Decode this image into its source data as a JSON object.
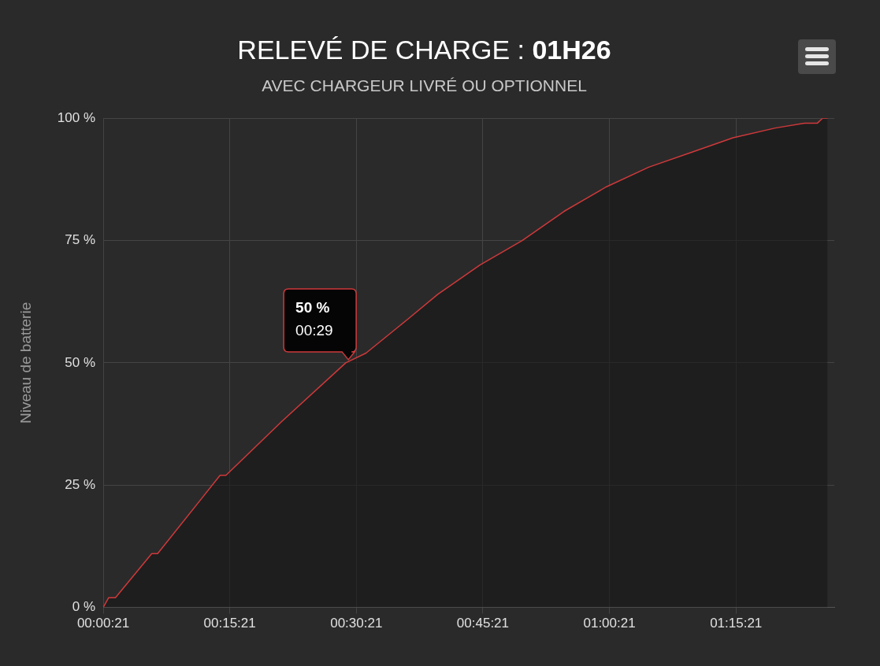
{
  "chart_data": {
    "type": "area",
    "title": "RELEVÉ DE CHARGE : 01H26",
    "subtitle": "AVEC CHARGEUR LIVRÉ OU OPTIONNEL",
    "ylabel": "Niveau de batterie",
    "series": [
      {
        "color": "#d0393b",
        "x": [
          0.35,
          1.0,
          1.8,
          6.1,
          6.8,
          14.2,
          14.9,
          21.5,
          29.1,
          31.5,
          36.5,
          40.0,
          45.0,
          50.0,
          55.0,
          60.0,
          65.0,
          70.0,
          75.0,
          80.0,
          83.5,
          85.0,
          85.6,
          86.2
        ],
        "values": [
          0,
          2,
          2,
          11,
          11,
          27,
          27,
          38,
          50,
          52,
          59,
          64,
          70,
          75,
          81,
          86,
          90,
          93,
          96,
          98,
          99,
          99,
          100,
          100
        ]
      }
    ],
    "xlim": [
      0.35,
      87
    ],
    "xticks": [
      {
        "value": 0.35,
        "label": "00:00:21"
      },
      {
        "value": 15.35,
        "label": "00:15:21"
      },
      {
        "value": 30.35,
        "label": "00:30:21"
      },
      {
        "value": 45.35,
        "label": "00:45:21"
      },
      {
        "value": 60.35,
        "label": "01:00:21"
      },
      {
        "value": 75.35,
        "label": "01:15:21"
      }
    ],
    "ylim": [
      0,
      100
    ],
    "yticks": [
      {
        "value": 0,
        "label": "0 %"
      },
      {
        "value": 25,
        "label": "25 %"
      },
      {
        "value": 50,
        "label": "50 %"
      },
      {
        "value": 75,
        "label": "75 %"
      },
      {
        "value": 100,
        "label": "100 %"
      }
    ],
    "grid": true,
    "legend": false,
    "marker": "none",
    "line_style": "solid",
    "annotations": [
      {
        "text": "50 %\n00:29",
        "x": 29.4,
        "y": 50
      }
    ]
  }
}
